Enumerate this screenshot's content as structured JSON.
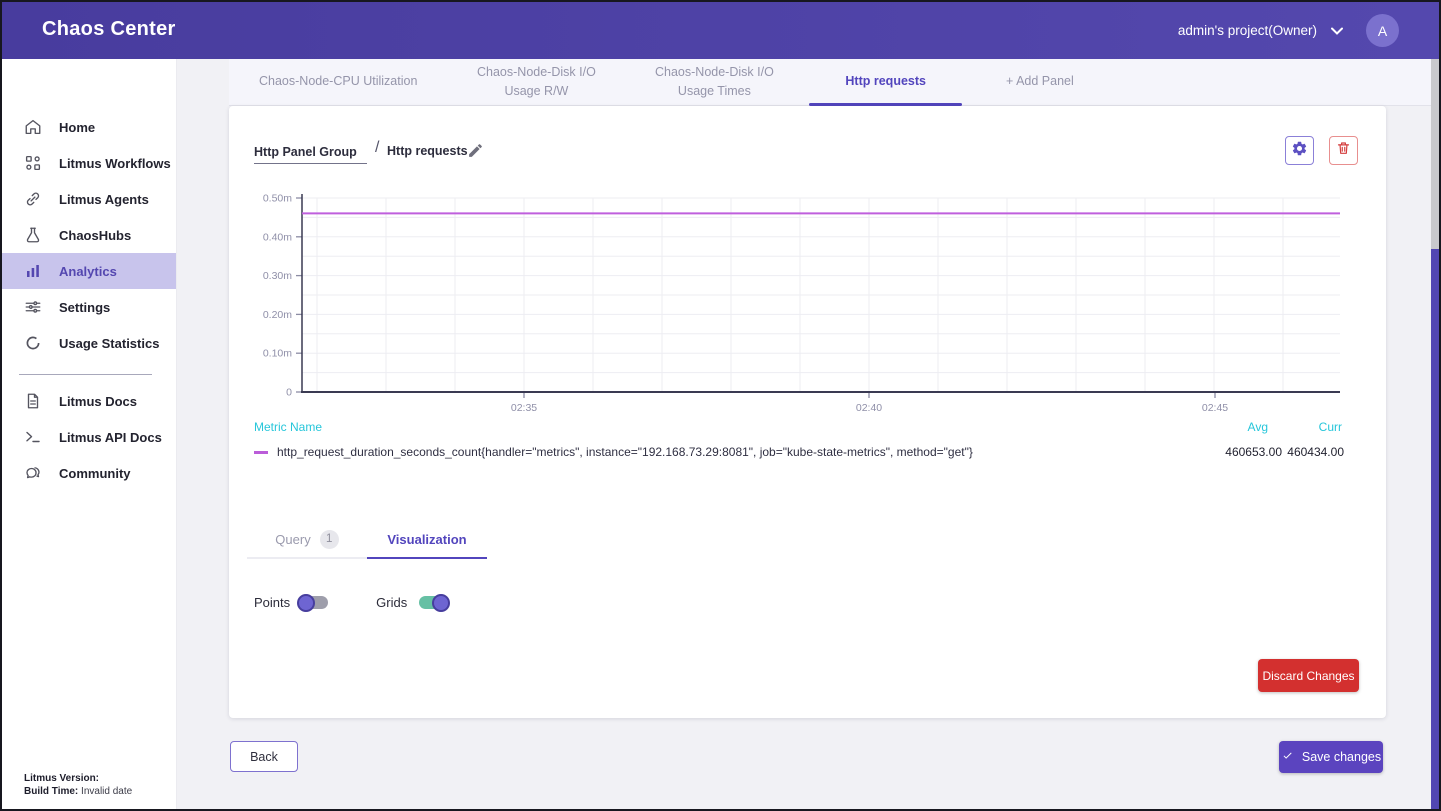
{
  "header": {
    "title": "Chaos Center",
    "project": "admin's project(Owner)",
    "avatar_initial": "A"
  },
  "sidebar": {
    "items": [
      {
        "label": "Home",
        "icon": "home-icon",
        "active": false
      },
      {
        "label": "Litmus Workflows",
        "icon": "workflows-icon",
        "active": false
      },
      {
        "label": "Litmus Agents",
        "icon": "link-icon",
        "active": false
      },
      {
        "label": "ChaosHubs",
        "icon": "flask-icon",
        "active": false
      },
      {
        "label": "Analytics",
        "icon": "bar-chart-icon",
        "active": true
      },
      {
        "label": "Settings",
        "icon": "sliders-icon",
        "active": false
      },
      {
        "label": "Usage Statistics",
        "icon": "circle-icon",
        "active": false
      }
    ],
    "docs": [
      {
        "label": "Litmus Docs",
        "icon": "document-icon"
      },
      {
        "label": "Litmus API Docs",
        "icon": "terminal-icon"
      },
      {
        "label": "Community",
        "icon": "chat-icon"
      }
    ],
    "version_label": "Litmus Version:",
    "build_label": "Build Time:",
    "build_value": "Invalid date"
  },
  "panel_tabs": [
    {
      "label": "Chaos-Node-CPU Utilization",
      "active": false
    },
    {
      "label": "Chaos-Node-Disk I/O Usage R/W",
      "active": false
    },
    {
      "label": "Chaos-Node-Disk I/O Usage Times",
      "active": false
    },
    {
      "label": "Http requests",
      "active": true
    },
    {
      "label": "+ Add Panel",
      "active": false
    }
  ],
  "panel": {
    "group_name": "Http Panel Group",
    "separator": "/",
    "name": "Http requests"
  },
  "chart_data": {
    "type": "line",
    "title": "",
    "xlabel": "",
    "ylabel": "",
    "grid": true,
    "x_ticks": [
      "02:35",
      "02:40",
      "02:45"
    ],
    "y_ticks": [
      "0.50m",
      "0.40m",
      "0.30m",
      "0.20m",
      "0.10m",
      "0"
    ],
    "ylim": [
      0,
      500000
    ],
    "series": [
      {
        "name": "http_request_duration_seconds_count{handler=\"metrics\", instance=\"192.168.73.29:8081\", job=\"kube-state-metrics\", method=\"get\"}",
        "color": "#bf5fdd",
        "shape": "constant-horizontal-line",
        "value": 460434,
        "avg": 460653,
        "curr": 460434
      }
    ]
  },
  "legend": {
    "metric_header": "Metric Name",
    "avg_header": "Avg",
    "curr_header": "Curr",
    "rows": [
      {
        "metric": "http_request_duration_seconds_count{handler=\"metrics\", instance=\"192.168.73.29:8081\", job=\"kube-state-metrics\", method=\"get\"}",
        "avg": "460653.00",
        "curr": "460434.00"
      }
    ]
  },
  "editor_tabs": {
    "query_label": "Query",
    "query_count": "1",
    "visualization_label": "Visualization"
  },
  "toggles": [
    {
      "label": "Points",
      "on": false
    },
    {
      "label": "Grids",
      "on": true
    }
  ],
  "buttons": {
    "discard": "Discard Changes",
    "back": "Back",
    "save": "Save changes"
  },
  "colors": {
    "accent": "#5245bd",
    "header": "#4c40a4",
    "series_line": "#bf5fdd",
    "legend_header": "#26c6da",
    "danger": "#d3302f",
    "toggle_on": "#66c0a4"
  }
}
